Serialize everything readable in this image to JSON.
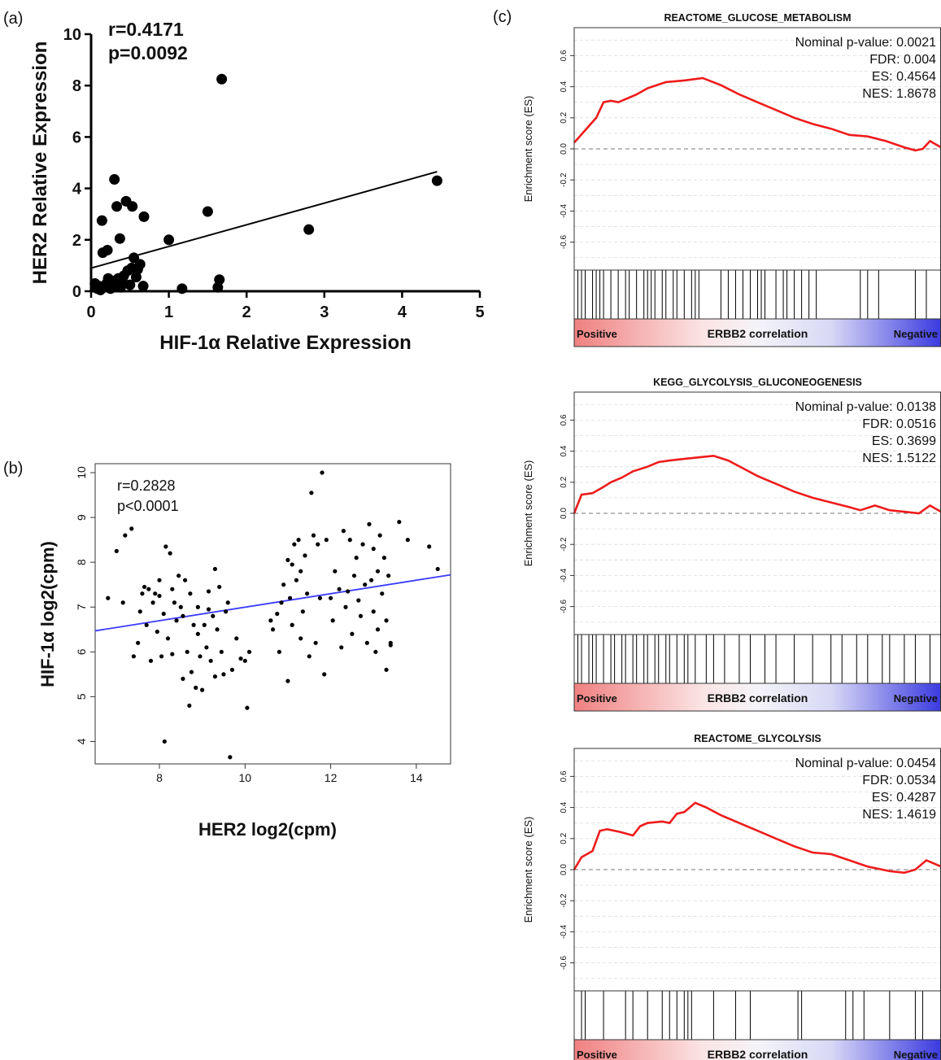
{
  "panels": {
    "a_label": "(a)",
    "b_label": "(b)",
    "c_label": "(c)"
  },
  "chart_data": [
    {
      "id": "a",
      "type": "scatter",
      "title": "",
      "xlabel": "HIF-1α Relative Expression",
      "ylabel": "HER2 Relative Expression",
      "xlim": [
        0,
        5
      ],
      "ylim": [
        0,
        10
      ],
      "x_ticks": [
        "0",
        "1",
        "2",
        "3",
        "4",
        "5"
      ],
      "y_ticks": [
        "0",
        "2",
        "4",
        "6",
        "8",
        "10"
      ],
      "annotations": [
        "r=0.4171",
        "p=0.0092"
      ],
      "regression": {
        "x": [
          0,
          4.45
        ],
        "y": [
          0.9,
          4.65
        ]
      },
      "points": [
        {
          "x": 0.05,
          "y": 0.3
        },
        {
          "x": 0.08,
          "y": 0.1
        },
        {
          "x": 0.1,
          "y": 0.2
        },
        {
          "x": 0.12,
          "y": 0.05
        },
        {
          "x": 0.14,
          "y": 2.75
        },
        {
          "x": 0.15,
          "y": 1.5
        },
        {
          "x": 0.2,
          "y": 0.3
        },
        {
          "x": 0.21,
          "y": 1.6
        },
        {
          "x": 0.22,
          "y": 0.5
        },
        {
          "x": 0.25,
          "y": 0.1
        },
        {
          "x": 0.28,
          "y": 0.4
        },
        {
          "x": 0.3,
          "y": 4.35
        },
        {
          "x": 0.32,
          "y": 0.2
        },
        {
          "x": 0.33,
          "y": 3.3
        },
        {
          "x": 0.35,
          "y": 0.5
        },
        {
          "x": 0.37,
          "y": 2.05
        },
        {
          "x": 0.38,
          "y": 0.15
        },
        {
          "x": 0.4,
          "y": 0.45
        },
        {
          "x": 0.42,
          "y": 0.6
        },
        {
          "x": 0.45,
          "y": 3.5
        },
        {
          "x": 0.47,
          "y": 0.8
        },
        {
          "x": 0.5,
          "y": 0.25
        },
        {
          "x": 0.52,
          "y": 0.9
        },
        {
          "x": 0.53,
          "y": 3.3
        },
        {
          "x": 0.55,
          "y": 1.3
        },
        {
          "x": 0.58,
          "y": 0.55
        },
        {
          "x": 0.6,
          "y": 0.85
        },
        {
          "x": 0.63,
          "y": 1.05
        },
        {
          "x": 0.68,
          "y": 2.9
        },
        {
          "x": 0.67,
          "y": 0.2
        },
        {
          "x": 1.0,
          "y": 2.0
        },
        {
          "x": 1.17,
          "y": 0.1
        },
        {
          "x": 1.5,
          "y": 3.1
        },
        {
          "x": 1.63,
          "y": 0.15
        },
        {
          "x": 1.65,
          "y": 0.45
        },
        {
          "x": 1.68,
          "y": 8.25
        },
        {
          "x": 2.8,
          "y": 2.4
        },
        {
          "x": 4.45,
          "y": 4.3
        }
      ]
    },
    {
      "id": "b",
      "type": "scatter",
      "title": "",
      "xlabel": "HER2 log2(cpm)",
      "ylabel": "HIF-1α  log2(cpm)",
      "xlim": [
        6.5,
        14.8
      ],
      "ylim": [
        3.5,
        10.2
      ],
      "x_ticks": [
        "8",
        "10",
        "12",
        "14"
      ],
      "y_ticks": [
        "4",
        "5",
        "6",
        "7",
        "8",
        "9",
        "10"
      ],
      "annotations": [
        "r=0.2828",
        "p<0.0001"
      ],
      "regression": {
        "x": [
          6.5,
          14.8
        ],
        "y": [
          6.47,
          7.72
        ]
      },
      "points": [
        {
          "x": 6.8,
          "y": 7.2
        },
        {
          "x": 7.0,
          "y": 8.25
        },
        {
          "x": 7.15,
          "y": 7.1
        },
        {
          "x": 7.2,
          "y": 8.6
        },
        {
          "x": 7.35,
          "y": 8.75
        },
        {
          "x": 7.4,
          "y": 5.9
        },
        {
          "x": 7.5,
          "y": 6.2
        },
        {
          "x": 7.55,
          "y": 6.9
        },
        {
          "x": 7.6,
          "y": 7.3
        },
        {
          "x": 7.65,
          "y": 7.45
        },
        {
          "x": 7.7,
          "y": 6.6
        },
        {
          "x": 7.75,
          "y": 7.4
        },
        {
          "x": 7.8,
          "y": 5.8
        },
        {
          "x": 7.85,
          "y": 7.1
        },
        {
          "x": 7.9,
          "y": 7.3
        },
        {
          "x": 7.95,
          "y": 6.45
        },
        {
          "x": 8.0,
          "y": 7.6
        },
        {
          "x": 8.05,
          "y": 5.9
        },
        {
          "x": 8.1,
          "y": 6.85
        },
        {
          "x": 8.12,
          "y": 4.0
        },
        {
          "x": 8.15,
          "y": 8.35
        },
        {
          "x": 8.2,
          "y": 6.3
        },
        {
          "x": 8.25,
          "y": 8.2
        },
        {
          "x": 8.3,
          "y": 7.4
        },
        {
          "x": 8.3,
          "y": 5.95
        },
        {
          "x": 8.35,
          "y": 7.1
        },
        {
          "x": 8.4,
          "y": 6.7
        },
        {
          "x": 8.45,
          "y": 7.7
        },
        {
          "x": 8.5,
          "y": 7.0
        },
        {
          "x": 8.55,
          "y": 6.8
        },
        {
          "x": 8.55,
          "y": 5.4
        },
        {
          "x": 8.6,
          "y": 7.6
        },
        {
          "x": 8.65,
          "y": 6.0
        },
        {
          "x": 8.7,
          "y": 4.8
        },
        {
          "x": 8.72,
          "y": 7.3
        },
        {
          "x": 8.75,
          "y": 5.55
        },
        {
          "x": 8.8,
          "y": 6.6
        },
        {
          "x": 8.85,
          "y": 5.2
        },
        {
          "x": 8.9,
          "y": 6.4
        },
        {
          "x": 8.9,
          "y": 7.0
        },
        {
          "x": 8.95,
          "y": 5.9
        },
        {
          "x": 9.0,
          "y": 5.15
        },
        {
          "x": 9.05,
          "y": 6.6
        },
        {
          "x": 9.1,
          "y": 6.1
        },
        {
          "x": 9.15,
          "y": 7.35
        },
        {
          "x": 9.2,
          "y": 5.8
        },
        {
          "x": 9.25,
          "y": 6.8
        },
        {
          "x": 9.3,
          "y": 5.45
        },
        {
          "x": 9.3,
          "y": 7.85
        },
        {
          "x": 9.35,
          "y": 6.5
        },
        {
          "x": 9.4,
          "y": 7.45
        },
        {
          "x": 9.45,
          "y": 6.0
        },
        {
          "x": 9.5,
          "y": 5.5
        },
        {
          "x": 9.55,
          "y": 6.9
        },
        {
          "x": 9.6,
          "y": 7.1
        },
        {
          "x": 9.65,
          "y": 3.65
        },
        {
          "x": 9.7,
          "y": 5.6
        },
        {
          "x": 9.8,
          "y": 6.3
        },
        {
          "x": 9.9,
          "y": 5.85
        },
        {
          "x": 10.0,
          "y": 5.8
        },
        {
          "x": 10.05,
          "y": 4.75
        },
        {
          "x": 10.1,
          "y": 6.0
        },
        {
          "x": 10.6,
          "y": 6.7
        },
        {
          "x": 10.65,
          "y": 6.5
        },
        {
          "x": 10.75,
          "y": 6.85
        },
        {
          "x": 10.8,
          "y": 6.0
        },
        {
          "x": 10.85,
          "y": 7.1
        },
        {
          "x": 10.9,
          "y": 7.5
        },
        {
          "x": 11.0,
          "y": 5.35
        },
        {
          "x": 11.0,
          "y": 8.05
        },
        {
          "x": 11.05,
          "y": 7.2
        },
        {
          "x": 11.1,
          "y": 6.6
        },
        {
          "x": 11.1,
          "y": 7.95
        },
        {
          "x": 11.15,
          "y": 8.4
        },
        {
          "x": 11.2,
          "y": 7.6
        },
        {
          "x": 11.25,
          "y": 8.5
        },
        {
          "x": 11.3,
          "y": 6.3
        },
        {
          "x": 11.3,
          "y": 7.8
        },
        {
          "x": 11.35,
          "y": 6.9
        },
        {
          "x": 11.4,
          "y": 8.15
        },
        {
          "x": 11.45,
          "y": 7.3
        },
        {
          "x": 11.5,
          "y": 5.9
        },
        {
          "x": 11.55,
          "y": 9.55
        },
        {
          "x": 11.6,
          "y": 8.6
        },
        {
          "x": 11.65,
          "y": 6.2
        },
        {
          "x": 11.7,
          "y": 8.4
        },
        {
          "x": 11.75,
          "y": 7.2
        },
        {
          "x": 11.8,
          "y": 10.0
        },
        {
          "x": 11.85,
          "y": 5.5
        },
        {
          "x": 11.9,
          "y": 8.5
        },
        {
          "x": 12.0,
          "y": 7.2
        },
        {
          "x": 12.05,
          "y": 6.7
        },
        {
          "x": 12.1,
          "y": 7.8
        },
        {
          "x": 12.2,
          "y": 7.4
        },
        {
          "x": 12.3,
          "y": 8.7
        },
        {
          "x": 12.35,
          "y": 7.0
        },
        {
          "x": 12.4,
          "y": 7.35
        },
        {
          "x": 12.45,
          "y": 8.5
        },
        {
          "x": 12.5,
          "y": 6.4
        },
        {
          "x": 12.55,
          "y": 7.7
        },
        {
          "x": 12.6,
          "y": 8.1
        },
        {
          "x": 12.65,
          "y": 7.15
        },
        {
          "x": 12.7,
          "y": 6.8
        },
        {
          "x": 12.75,
          "y": 8.4
        },
        {
          "x": 12.8,
          "y": 7.5
        },
        {
          "x": 12.85,
          "y": 6.2
        },
        {
          "x": 12.9,
          "y": 8.85
        },
        {
          "x": 12.95,
          "y": 7.6
        },
        {
          "x": 13.0,
          "y": 6.9
        },
        {
          "x": 13.0,
          "y": 8.3
        },
        {
          "x": 13.05,
          "y": 6.0
        },
        {
          "x": 13.1,
          "y": 7.8
        },
        {
          "x": 13.1,
          "y": 6.5
        },
        {
          "x": 13.15,
          "y": 8.6
        },
        {
          "x": 13.2,
          "y": 7.3
        },
        {
          "x": 13.25,
          "y": 8.1
        },
        {
          "x": 13.3,
          "y": 6.7
        },
        {
          "x": 13.3,
          "y": 5.6
        },
        {
          "x": 13.35,
          "y": 7.7
        },
        {
          "x": 13.4,
          "y": 6.2
        },
        {
          "x": 13.6,
          "y": 8.9
        },
        {
          "x": 13.8,
          "y": 8.5
        },
        {
          "x": 14.3,
          "y": 8.35
        },
        {
          "x": 14.5,
          "y": 7.85
        },
        {
          "x": 12.25,
          "y": 6.1
        },
        {
          "x": 8.0,
          "y": 7.25
        },
        {
          "x": 9.15,
          "y": 6.95
        },
        {
          "x": 13.4,
          "y": 6.15
        }
      ]
    },
    {
      "id": "c1",
      "type": "line",
      "title": "REACTOME_GLUCOSE_METABOLISM",
      "xlabel": "ERBB2 correlation",
      "ylabel": "Enrichment score (ES)",
      "ylim": [
        -0.78,
        0.78
      ],
      "y_ticks": [
        "0.6",
        "0.4",
        "0.2",
        "0.0",
        "-0.2",
        "-0.4",
        "-0.6"
      ],
      "stats": [
        "Nominal p-value: 0.0021",
        "FDR: 0.004",
        "ES: 0.4564",
        "NES: 1.8678"
      ],
      "gradient_labels": {
        "left": "Positive",
        "right": "Negative"
      },
      "x": [
        0,
        0.03,
        0.06,
        0.08,
        0.1,
        0.12,
        0.15,
        0.17,
        0.2,
        0.25,
        0.3,
        0.35,
        0.4,
        0.45,
        0.5,
        0.55,
        0.6,
        0.65,
        0.7,
        0.75,
        0.8,
        0.85,
        0.9,
        0.93,
        0.95,
        0.97,
        1.0
      ],
      "y": [
        0.04,
        0.12,
        0.2,
        0.3,
        0.31,
        0.3,
        0.33,
        0.35,
        0.39,
        0.43,
        0.44,
        0.456,
        0.41,
        0.35,
        0.3,
        0.25,
        0.2,
        0.16,
        0.13,
        0.09,
        0.08,
        0.05,
        0.01,
        -0.01,
        0.0,
        0.05,
        0.01
      ],
      "hits": [
        0.01,
        0.02,
        0.03,
        0.05,
        0.06,
        0.07,
        0.08,
        0.1,
        0.12,
        0.14,
        0.15,
        0.17,
        0.19,
        0.2,
        0.21,
        0.22,
        0.24,
        0.25,
        0.27,
        0.28,
        0.3,
        0.32,
        0.33,
        0.34,
        0.4,
        0.42,
        0.44,
        0.46,
        0.48,
        0.5,
        0.51,
        0.52,
        0.55,
        0.57,
        0.58,
        0.6,
        0.62,
        0.64,
        0.66,
        0.78,
        0.8,
        0.83,
        0.93,
        0.96
      ]
    },
    {
      "id": "c2",
      "type": "line",
      "title": "KEGG_GLYCOLYSIS_GLUCONEOGENESIS",
      "xlabel": "ERBB2 correlation",
      "ylabel": "Enrichment score (ES)",
      "ylim": [
        -0.78,
        0.78
      ],
      "y_ticks": [
        "0.6",
        "0.4",
        "0.2",
        "0.0",
        "-0.2",
        "-0.4",
        "-0.6"
      ],
      "stats": [
        "Nominal p-value: 0.0138",
        "FDR: 0.0516",
        "ES: 0.3699",
        "NES: 1.5122"
      ],
      "gradient_labels": {
        "left": "Positive",
        "right": "Negative"
      },
      "x": [
        0,
        0.02,
        0.05,
        0.08,
        0.1,
        0.13,
        0.16,
        0.2,
        0.23,
        0.26,
        0.3,
        0.34,
        0.38,
        0.42,
        0.46,
        0.5,
        0.55,
        0.6,
        0.65,
        0.7,
        0.75,
        0.78,
        0.82,
        0.86,
        0.9,
        0.94,
        0.97,
        1.0
      ],
      "y": [
        0.0,
        0.12,
        0.13,
        0.17,
        0.2,
        0.23,
        0.27,
        0.3,
        0.33,
        0.34,
        0.35,
        0.36,
        0.37,
        0.34,
        0.29,
        0.24,
        0.19,
        0.14,
        0.1,
        0.07,
        0.04,
        0.02,
        0.05,
        0.02,
        0.01,
        0.0,
        0.05,
        0.01
      ],
      "hits": [
        0.01,
        0.02,
        0.04,
        0.05,
        0.06,
        0.08,
        0.1,
        0.11,
        0.13,
        0.14,
        0.16,
        0.17,
        0.19,
        0.2,
        0.22,
        0.23,
        0.25,
        0.26,
        0.28,
        0.3,
        0.31,
        0.33,
        0.36,
        0.38,
        0.41,
        0.45,
        0.48,
        0.52,
        0.55,
        0.6,
        0.65,
        0.7,
        0.73,
        0.77,
        0.8,
        0.84,
        0.86,
        0.9,
        0.93,
        0.97
      ]
    },
    {
      "id": "c3",
      "type": "line",
      "title": "REACTOME_GLYCOLYSIS",
      "xlabel": "ERBB2 correlation",
      "ylabel": "Enrichment score (ES)",
      "ylim": [
        -0.78,
        0.78
      ],
      "y_ticks": [
        "0.6",
        "0.4",
        "0.2",
        "0.0",
        "-0.2",
        "-0.4",
        "-0.6"
      ],
      "stats": [
        "Nominal p-value: 0.0454",
        "FDR: 0.0534",
        "ES: 0.4287",
        "NES: 1.4619"
      ],
      "gradient_labels": {
        "left": "Positive",
        "right": "Negative"
      },
      "x": [
        0,
        0.02,
        0.05,
        0.07,
        0.09,
        0.13,
        0.16,
        0.18,
        0.2,
        0.24,
        0.26,
        0.28,
        0.3,
        0.33,
        0.36,
        0.4,
        0.45,
        0.5,
        0.55,
        0.6,
        0.65,
        0.7,
        0.75,
        0.8,
        0.86,
        0.9,
        0.93,
        0.96,
        1.0
      ],
      "y": [
        0.0,
        0.08,
        0.12,
        0.25,
        0.26,
        0.24,
        0.22,
        0.28,
        0.3,
        0.31,
        0.3,
        0.36,
        0.37,
        0.43,
        0.4,
        0.35,
        0.3,
        0.25,
        0.2,
        0.15,
        0.11,
        0.1,
        0.06,
        0.02,
        -0.01,
        -0.02,
        0.0,
        0.06,
        0.02
      ],
      "hits": [
        0.02,
        0.03,
        0.08,
        0.14,
        0.16,
        0.2,
        0.24,
        0.26,
        0.28,
        0.3,
        0.31,
        0.32,
        0.38,
        0.44,
        0.48,
        0.61,
        0.62,
        0.74,
        0.76,
        0.79,
        0.86,
        0.93,
        0.95
      ]
    }
  ]
}
